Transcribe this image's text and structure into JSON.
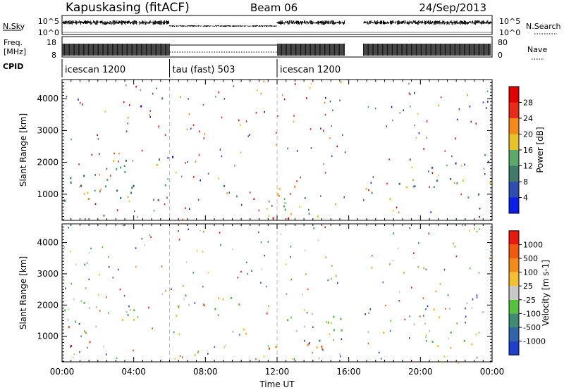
{
  "header": {
    "station": "Kapuskasing (fitACF)",
    "beam": "Beam 06",
    "date": "24/Sep/2013"
  },
  "noise_panel": {
    "left_label": "N.Sky",
    "left_ticks": [
      "10^5",
      "10^0"
    ],
    "right_label": "N.Search",
    "right_ticks": [
      "10^5",
      "10^0"
    ]
  },
  "freq_panel": {
    "left_label_line1": "Freq.",
    "left_label_line2": "[MHz]",
    "left_ticks": [
      "18",
      "8"
    ],
    "right_label": "Nave",
    "right_ticks": [
      "80",
      "0"
    ]
  },
  "cpid_panel": {
    "label": "CPID",
    "segments": [
      {
        "name": "icescan 1200",
        "start_h": 0,
        "end_h": 6
      },
      {
        "name": "tau (fast) 503",
        "start_h": 6,
        "end_h": 12
      },
      {
        "name": "icescan 1200",
        "start_h": 12,
        "end_h": 24
      }
    ]
  },
  "data_gap_hours": [
    15.8,
    16.8
  ],
  "chart_data": [
    {
      "type": "heatmap",
      "id": "power",
      "xlabel": "",
      "ylabel": "Slant Range [km]",
      "xlim": [
        0,
        24
      ],
      "ylim": [
        180,
        4600
      ],
      "yticks": [
        "1000",
        "2000",
        "3000",
        "4000"
      ],
      "colorbar": {
        "label": "Power [dB]",
        "ticks": [
          "4",
          "8",
          "12",
          "16",
          "20",
          "24",
          "28"
        ],
        "colors": [
          "#0a1ee8",
          "#2f4fb0",
          "#3f7a6a",
          "#5aa86a",
          "#e8c22a",
          "#f28a1c",
          "#e82a1a",
          "#e00000"
        ]
      },
      "regions": [
        {
          "t": [
            0,
            6.5
          ],
          "r": [
            700,
            1700
          ],
          "level": 2
        },
        {
          "t": [
            0,
            1.5
          ],
          "r": [
            850,
            1200
          ],
          "level": 5
        },
        {
          "t": [
            2.5,
            6.0
          ],
          "r": [
            1500,
            2150
          ],
          "level": 3
        },
        {
          "t": [
            6.0,
            9.5
          ],
          "r": [
            2050,
            2400
          ],
          "level": 1
        },
        {
          "t": [
            9.0,
            11.0
          ],
          "r": [
            950,
            1300
          ],
          "level": 2
        },
        {
          "t": [
            11.2,
            12.6
          ],
          "r": [
            200,
            550
          ],
          "level": 7
        },
        {
          "t": [
            12.0,
            15.7
          ],
          "r": [
            900,
            1300
          ],
          "level": 4
        },
        {
          "t": [
            12.0,
            15.7
          ],
          "r": [
            300,
            700
          ],
          "level": 3
        },
        {
          "t": [
            16.8,
            24
          ],
          "r": [
            800,
            1500
          ],
          "level": 3
        },
        {
          "t": [
            20.5,
            24
          ],
          "r": [
            1300,
            2300
          ],
          "level": 2
        },
        {
          "t": [
            3.5,
            6.5
          ],
          "r": [
            3700,
            4200
          ],
          "level": 1
        }
      ]
    },
    {
      "type": "heatmap",
      "id": "velocity",
      "xlabel": "Time UT",
      "ylabel": "Slant Range [km]",
      "xlim": [
        0,
        24
      ],
      "ylim": [
        180,
        4600
      ],
      "xticks": [
        "00:00",
        "04:00",
        "08:00",
        "12:00",
        "16:00",
        "20:00",
        "00:00"
      ],
      "yticks": [
        "1000",
        "2000",
        "3000",
        "4000"
      ],
      "colorbar": {
        "label": "Velocity [m s-1]",
        "ticks": [
          "1000",
          "500",
          "100",
          "25",
          "-25",
          "-100",
          "-500",
          "-1000"
        ],
        "colors": [
          "#1f3fc8",
          "#2f66a8",
          "#3f8a70",
          "#58c040",
          "#c8c8c8",
          "#f2c030",
          "#f28a1c",
          "#f05a10",
          "#e81a10"
        ]
      },
      "regions": [
        {
          "t": [
            0,
            2.2
          ],
          "r": [
            700,
            1700
          ],
          "level": 7
        },
        {
          "t": [
            0,
            6.5
          ],
          "r": [
            1300,
            2300
          ],
          "level": 4
        },
        {
          "t": [
            6.0,
            11.0
          ],
          "r": [
            1900,
            2400
          ],
          "level": 4
        },
        {
          "t": [
            8.5,
            10.5
          ],
          "r": [
            900,
            1400
          ],
          "level": 4
        },
        {
          "t": [
            11.3,
            12.6
          ],
          "r": [
            300,
            700
          ],
          "level": 6
        },
        {
          "t": [
            12.0,
            15.7
          ],
          "r": [
            300,
            800
          ],
          "level": 5
        },
        {
          "t": [
            12.0,
            15.7
          ],
          "r": [
            800,
            1900
          ],
          "level": 3
        },
        {
          "t": [
            16.8,
            24
          ],
          "r": [
            700,
            1500
          ],
          "level": 4
        },
        {
          "t": [
            20.5,
            24
          ],
          "r": [
            1400,
            2300
          ],
          "level": 4
        }
      ]
    }
  ]
}
